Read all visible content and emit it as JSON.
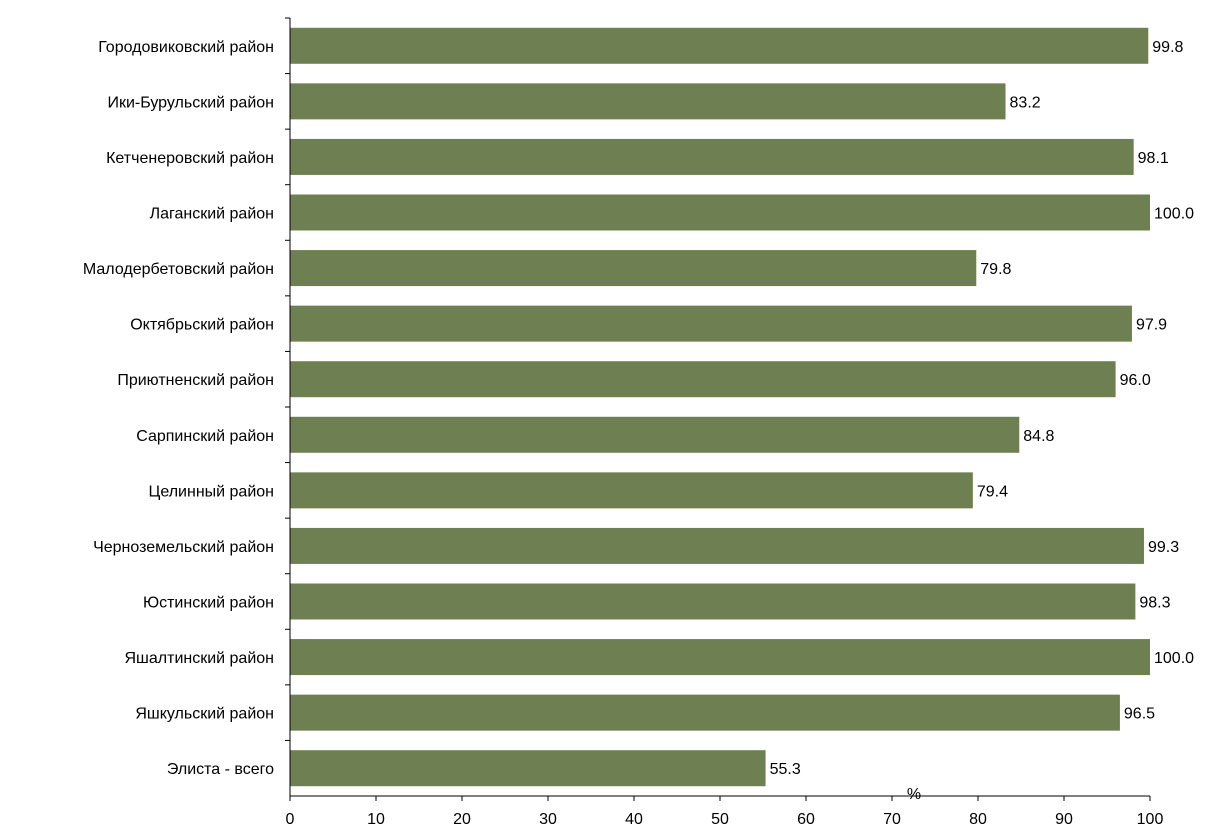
{
  "chart_data": {
    "type": "bar",
    "orientation": "horizontal",
    "categories": [
      "Городовиковский район",
      "Ики-Бурульский район",
      "Кетченеровский район",
      "Лаганский район",
      "Малодербетовский район",
      "Октябрьский район",
      "Приютненский район",
      "Сарпинский район",
      "Целинный район",
      "Черноземельский район",
      "Юстинский район",
      "Яшалтинский район",
      "Яшкульский район",
      "Элиста - всего"
    ],
    "values": [
      99.8,
      83.2,
      98.1,
      100.0,
      79.8,
      97.9,
      96.0,
      84.8,
      79.4,
      99.3,
      98.3,
      100.0,
      96.5,
      55.3
    ],
    "value_labels": [
      "99.8",
      "83.2",
      "98.1",
      "100.0",
      "79.8",
      "97.9",
      "96.0",
      "84.8",
      "79.4",
      "99.3",
      "98.3",
      "100.0",
      "96.5",
      "55.3"
    ],
    "xlim": [
      0,
      100
    ],
    "xticks": [
      0,
      10,
      20,
      30,
      40,
      50,
      60,
      70,
      80,
      90,
      100
    ],
    "unit_label": "%",
    "title": "",
    "xlabel": "",
    "ylabel": "",
    "grid": false,
    "legend": "none",
    "bar_color": "#6e7f51",
    "axis_color": "#000000"
  }
}
